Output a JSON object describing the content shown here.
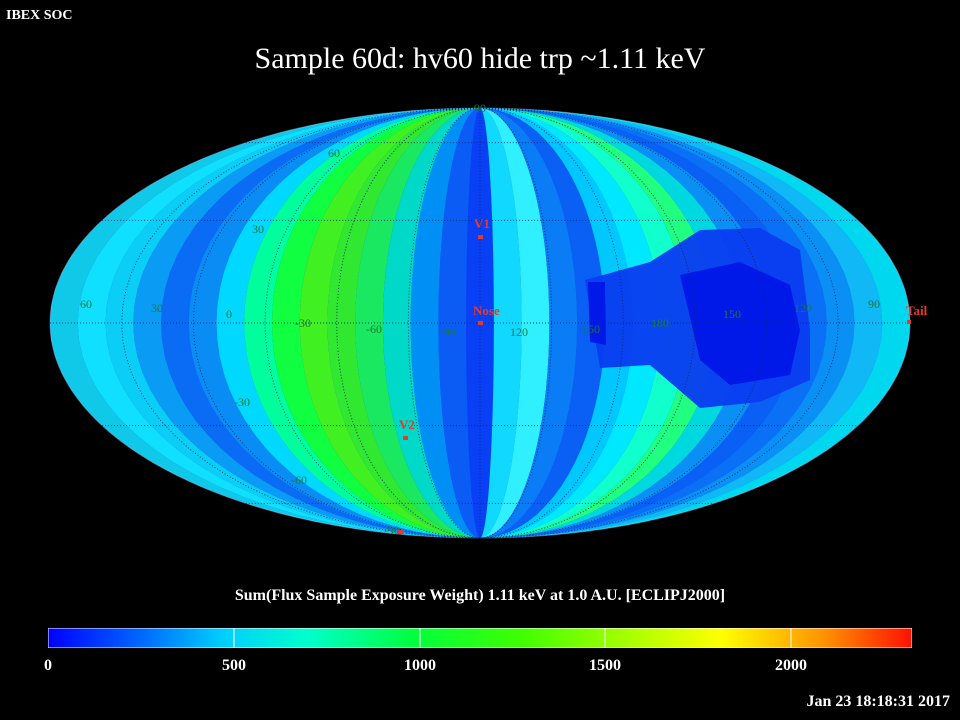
{
  "header": {
    "source_label": "IBEX SOC",
    "title": "Sample 60d: hv60 hide trp ~1.11 keV"
  },
  "map": {
    "projection": "Mollweide",
    "grid_labels": [
      "90",
      "60",
      "30",
      "60",
      "30",
      "0",
      "-30",
      "-60",
      "-90",
      "120",
      "150",
      "180",
      "150",
      "120",
      "90",
      "-30",
      "-60",
      "-90"
    ],
    "markers": [
      {
        "label": "V1",
        "color": "#e53a2a"
      },
      {
        "label": "Nose",
        "color": "#e53a2a"
      },
      {
        "label": "V2",
        "color": "#e53a2a"
      },
      {
        "label": "Tail",
        "color": "#e53a2a"
      }
    ]
  },
  "caption": "Sum(Flux Sample Exposure Weight)  1.11 keV at 1.0 A.U. [ECLIPJ2000]",
  "colorbar": {
    "ticks": [
      "0",
      "500",
      "1000",
      "1500",
      "2000"
    ],
    "range": [
      0,
      2330
    ],
    "colors": [
      "#0000ff",
      "#0090ff",
      "#00ffff",
      "#00ff90",
      "#00ff00",
      "#90ff00",
      "#ffff00",
      "#ff9000",
      "#ff0000"
    ]
  },
  "timestamp": "Jan 23 18:18:31 2017"
}
